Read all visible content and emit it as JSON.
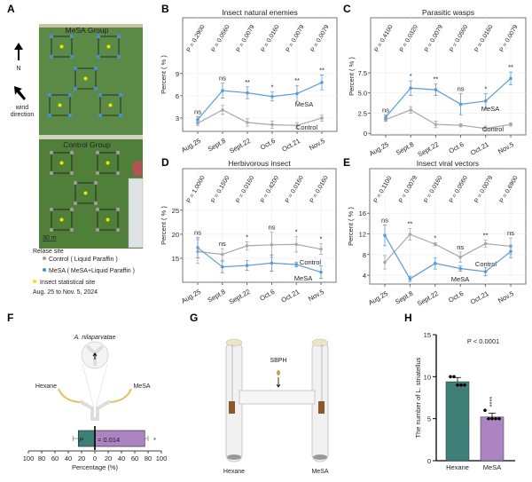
{
  "panels": {
    "A": "A",
    "B": "B",
    "C": "C",
    "D": "D",
    "E": "E",
    "F": "F",
    "G": "G",
    "H": "H"
  },
  "map": {
    "mesa_group": "MeSA Group",
    "control_group": "Control Group",
    "north": "N",
    "wind": [
      "wind",
      "direction"
    ],
    "scale": "30 m",
    "legend_title": "Relase site",
    "legend_control": "Control ( Liquid Paraffin )",
    "legend_mesa": "MeSA ( MeSA+Liquid Paraffin )",
    "legend_stat": "Insect statistical site",
    "dates": "Aug. 25 to Nov. 5, 2024",
    "colors": {
      "control": "#9e9e9e",
      "mesa": "#4a90d9",
      "stat": "#f2e600",
      "field": "#4e7d3a"
    }
  },
  "colors": {
    "mesa": "#5b9bd5",
    "control": "#a8a8a8",
    "hexane_bar": "#3e7f78",
    "mesa_bar": "#ac84c2"
  },
  "chart_data": [
    {
      "id": "B",
      "type": "line",
      "title": "Insect natural enemies",
      "ylabel": "Percent ( % )",
      "categories": [
        "Aug.25",
        "Sept.8",
        "Sept.22",
        "Oct.6",
        "Oct.21",
        "Nov.5"
      ],
      "yticks": [
        3,
        6,
        9
      ],
      "ylim": [
        1.2,
        11.5
      ],
      "grid": true,
      "series": [
        {
          "name": "MeSA",
          "values": [
            2.8,
            6.7,
            6.4,
            5.9,
            6.3,
            7.8
          ],
          "errors": [
            0.4,
            1.0,
            0.8,
            0.6,
            1.1,
            1.0
          ]
        },
        {
          "name": "Control",
          "values": [
            2.3,
            4.1,
            2.4,
            2.1,
            2.0,
            3.0
          ],
          "errors": [
            0.3,
            0.6,
            0.5,
            0.5,
            0.4,
            0.4
          ]
        }
      ],
      "p_values": [
        "P = 0.2900",
        "P = 0.0560",
        "P = 0.0079",
        "P = 0.0160",
        "P = 0.0079",
        "P = 0.0079"
      ],
      "significance": [
        "ns",
        "ns",
        "**",
        "*",
        "**",
        "**"
      ]
    },
    {
      "id": "C",
      "type": "line",
      "title": "Parasitic wasps",
      "ylabel": "Percent ( % )",
      "categories": [
        "Aug.25",
        "Sept.8",
        "Sept.22",
        "Oct.6",
        "Oct.21",
        "Nov.5"
      ],
      "yticks": [
        0,
        2.5,
        5.0,
        7.5
      ],
      "ytick_labels": [
        "0",
        "2.5",
        "5.0",
        "7.5"
      ],
      "ylim": [
        -0.2,
        9.7
      ],
      "grid": true,
      "series": [
        {
          "name": "MeSA",
          "values": [
            2.0,
            5.6,
            5.4,
            3.6,
            4.0,
            6.8
          ],
          "errors": [
            0.3,
            0.9,
            0.7,
            1.3,
            0.9,
            0.8
          ]
        },
        {
          "name": "Control",
          "values": [
            1.7,
            2.9,
            1.1,
            1.0,
            0.6,
            1.1
          ],
          "errors": [
            0.2,
            0.4,
            0.4,
            0.2,
            0.3,
            0.2
          ]
        }
      ],
      "p_values": [
        "P = 0.4100",
        "P = 0.0320",
        "P = 0.0079",
        "P = 0.0560",
        "P = 0.0160",
        "P = 0.0079"
      ],
      "significance": [
        "ns",
        "*",
        "**",
        "ns",
        "*",
        "**"
      ]
    },
    {
      "id": "D",
      "type": "line",
      "title": "Herbivorous insect",
      "ylabel": "Percent ( % )",
      "categories": [
        "Aug.25",
        "Sept.8",
        "Sept.22",
        "Oct.6",
        "Oct.21",
        "Nov.5"
      ],
      "yticks": [
        15,
        20,
        25
      ],
      "ylim": [
        10,
        25.9
      ],
      "grid": true,
      "series": [
        {
          "name": "MeSA",
          "values": [
            17.2,
            13.2,
            13.5,
            14.0,
            13.7,
            12.1
          ],
          "errors": [
            2.1,
            1.2,
            1.0,
            1.7,
            0.5,
            1.3
          ]
        },
        {
          "name": "Control",
          "values": [
            16.4,
            15.8,
            17.6,
            17.8,
            17.9,
            16.9
          ],
          "errors": [
            2.5,
            1.2,
            0.8,
            2.6,
            1.6,
            1.1
          ]
        }
      ],
      "p_values": [
        "P = 1.0000",
        "P = 0.1500",
        "P = 0.0160",
        "P = 0.4200",
        "P = 0.0160",
        "P = 0.0160"
      ],
      "significance": [
        "ns",
        "ns",
        "*",
        "ns",
        "*",
        "*"
      ]
    },
    {
      "id": "E",
      "type": "line",
      "title": "Insect viral vectors",
      "ylabel": "Percent ( % )",
      "categories": [
        "Aug.25",
        "Sept.8",
        "Sept.22",
        "Oct.6",
        "Oct.21",
        "Nov.5"
      ],
      "yticks": [
        4,
        8,
        12,
        16
      ],
      "ylim": [
        2.3,
        17.4
      ],
      "grid": true,
      "series": [
        {
          "name": "MeSA",
          "values": [
            11.7,
            3.3,
            6.3,
            5.3,
            4.7,
            8.6
          ],
          "errors": [
            2.0,
            0.5,
            1.1,
            0.5,
            0.8,
            1.2
          ]
        },
        {
          "name": "Control",
          "values": [
            6.5,
            11.9,
            10.0,
            7.5,
            10.1,
            9.6
          ],
          "errors": [
            1.3,
            1.1,
            0.3,
            1.0,
            0.7,
            1.6
          ]
        }
      ],
      "p_values": [
        "P = 0.1100",
        "P = 0.0079",
        "P = 0.0160",
        "P = 0.0560",
        "P = 0.0079",
        "P = 0.6900"
      ],
      "significance": [
        "ns",
        "**",
        "*",
        "ns",
        "**",
        "ns"
      ]
    },
    {
      "id": "F",
      "type": "bar",
      "orientation": "horizontal",
      "title": "A. nilaparvatae",
      "categories": [
        "Hexane",
        "MeSA"
      ],
      "values": [
        25,
        75
      ],
      "errors": [
        8,
        5
      ],
      "xlabel": "Percentage (%)",
      "xticks": [
        "100",
        "80",
        "60",
        "40",
        "20",
        "0",
        "20",
        "40",
        "60",
        "80",
        "100"
      ],
      "xlim": [
        -100,
        100
      ],
      "p_label": "P",
      "p_text": "= 0.014",
      "significance": "*"
    },
    {
      "id": "H",
      "type": "bar",
      "title": "",
      "annotation": "P < 0.0001",
      "ylabel": "The number of L. striatellus",
      "categories": [
        "Hexane",
        "MeSA"
      ],
      "values": [
        9.4,
        5.2
      ],
      "errors": [
        0.5,
        0.45
      ],
      "points": [
        [
          10,
          10,
          9,
          9,
          9
        ],
        [
          6,
          5,
          5,
          5,
          5
        ]
      ],
      "yticks": [
        0,
        5,
        10,
        15
      ],
      "ylim": [
        0,
        15
      ],
      "significance": "****"
    }
  ],
  "g_diagram": {
    "insect": "SBPH",
    "left": "Hexane",
    "right": "MeSA"
  }
}
